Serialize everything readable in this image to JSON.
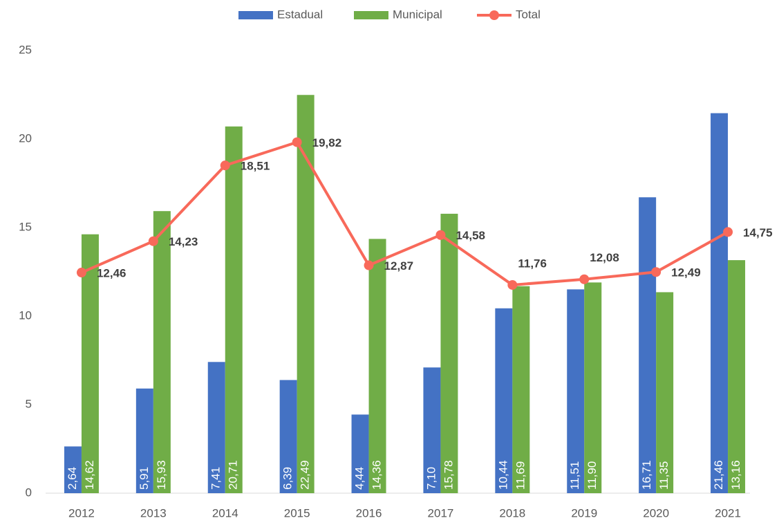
{
  "chart_data": {
    "type": "bar_line",
    "categories": [
      "2012",
      "2013",
      "2014",
      "2015",
      "2016",
      "2017",
      "2018",
      "2019",
      "2020",
      "2021"
    ],
    "series": [
      {
        "name": "Estadual",
        "type": "bar",
        "color": "#4472c4",
        "values": [
          2.64,
          5.91,
          7.41,
          6.39,
          4.44,
          7.1,
          10.44,
          11.51,
          16.71,
          21.46
        ],
        "value_labels": [
          "2,64",
          "5,91",
          "7,41",
          "6,39",
          "4,44",
          "7,10",
          "10,44",
          "11,51",
          "16,71",
          "21,46"
        ]
      },
      {
        "name": "Municipal",
        "type": "bar",
        "color": "#70ad47",
        "values": [
          14.62,
          15.93,
          20.71,
          22.49,
          14.36,
          15.78,
          11.69,
          11.9,
          11.35,
          13.16
        ],
        "value_labels": [
          "14,62",
          "15,93",
          "20,71",
          "22,49",
          "14,36",
          "15,78",
          "11,69",
          "11,90",
          "11,35",
          "13,16"
        ]
      },
      {
        "name": "Total",
        "type": "line",
        "color": "#f8695a",
        "values": [
          12.46,
          14.23,
          18.51,
          19.82,
          12.87,
          14.58,
          11.76,
          12.08,
          12.49,
          14.75
        ],
        "value_labels": [
          "12,46",
          "14,23",
          "18,51",
          "19,82",
          "12,87",
          "14,58",
          "11,76",
          "12,08",
          "12,49",
          "14,75"
        ]
      }
    ],
    "ylim": [
      0,
      25
    ],
    "yticks": [
      0,
      5,
      10,
      15,
      20,
      25
    ],
    "grid": false,
    "legend": "top"
  }
}
